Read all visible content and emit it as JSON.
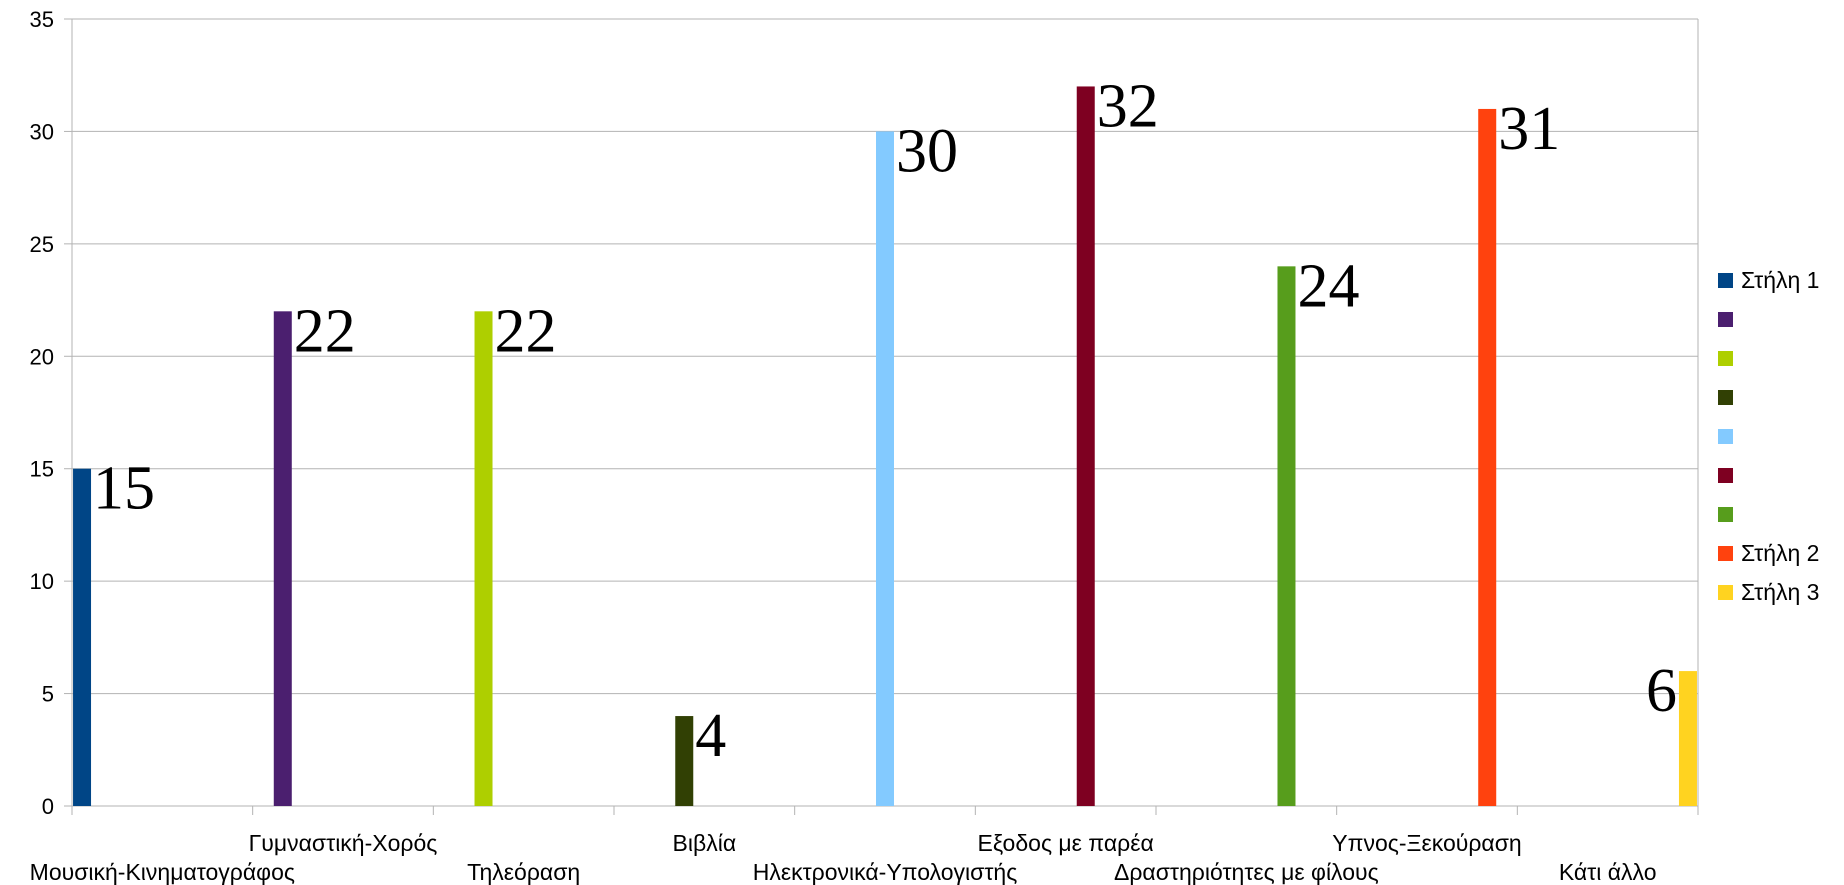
{
  "chart_data": {
    "type": "bar",
    "ylim": [
      0,
      35
    ],
    "y_ticks": [
      "0",
      "5",
      "10",
      "15",
      "20",
      "25",
      "30",
      "35"
    ],
    "grid": true,
    "legend_position": "right",
    "categories": [
      "Μουσική-Κινηματογράφος",
      "Γυμναστική-Χορός",
      "Τηλεόραση",
      "Βιβλία",
      "Ηλεκτρονικά-Υπολογιστής",
      "Εξοδος με παρέα",
      "Δραστηριότητες με φίλους",
      "Υπνος-Ξεκούραση",
      "Κάτι άλλο"
    ],
    "values": [
      15,
      22,
      22,
      4,
      30,
      32,
      24,
      31,
      6
    ],
    "data_labels": [
      "15",
      "22",
      "22",
      "4",
      "30",
      "32",
      "24",
      "31",
      "6"
    ],
    "bar_colors": [
      "#004586",
      "#4b1f6f",
      "#aecf00",
      "#314004",
      "#83caff",
      "#7e0021",
      "#579d1c",
      "#ff420e",
      "#ffd320"
    ],
    "legend": [
      {
        "label": "Στήλη 1",
        "color": "#004586"
      },
      {
        "label": "",
        "color": "#4b1f6f"
      },
      {
        "label": "",
        "color": "#aecf00"
      },
      {
        "label": "",
        "color": "#314004"
      },
      {
        "label": "",
        "color": "#83caff"
      },
      {
        "label": "",
        "color": "#7e0021"
      },
      {
        "label": "",
        "color": "#579d1c"
      },
      {
        "label": "Στήλη 2",
        "color": "#ff420e"
      },
      {
        "label": "Στήλη 3",
        "color": "#ffd320"
      }
    ]
  }
}
